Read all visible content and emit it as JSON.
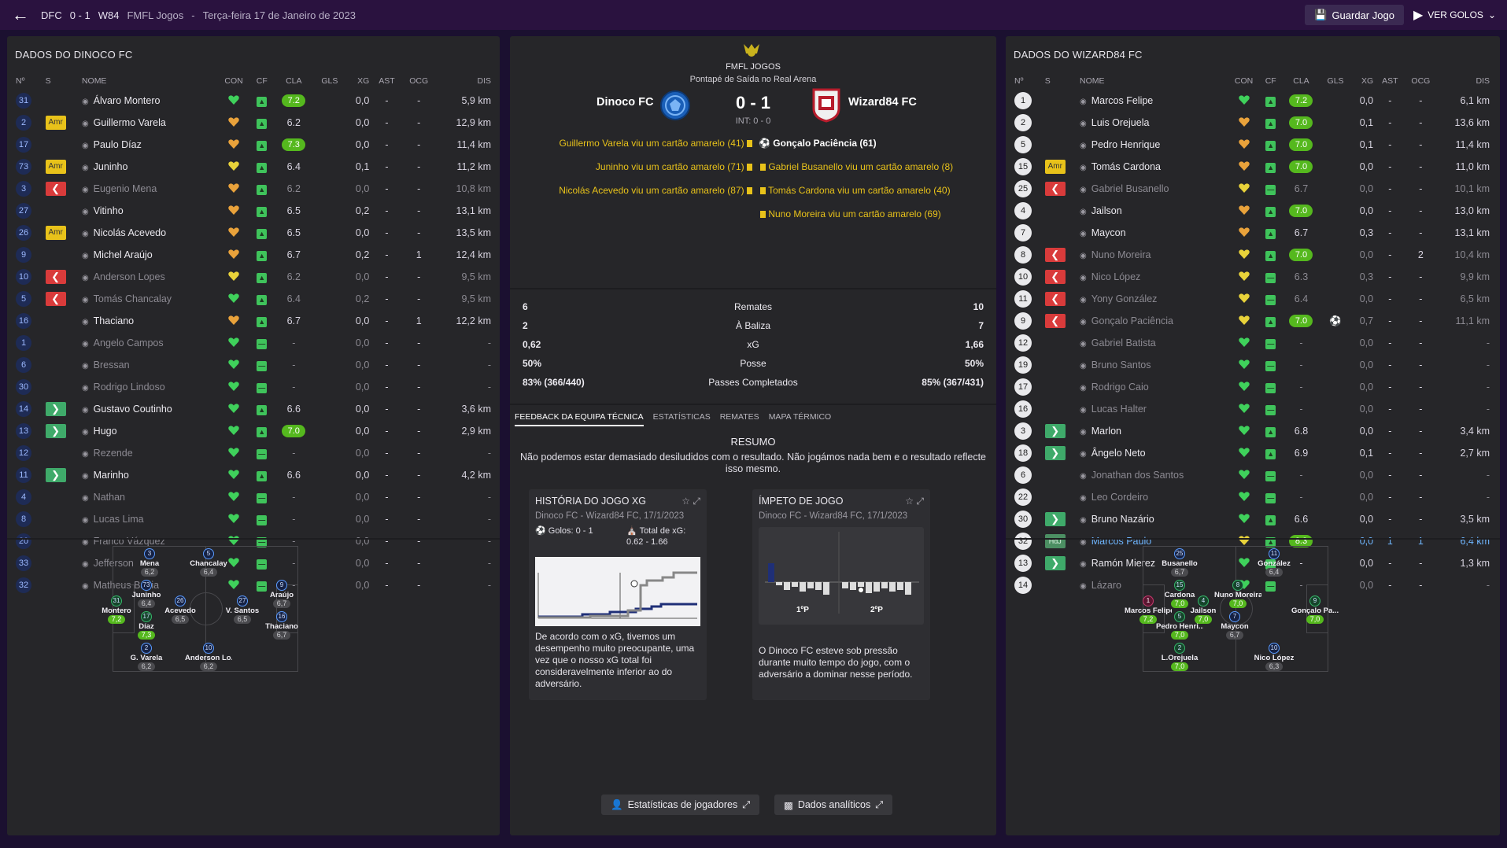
{
  "topbar": {
    "abbr": "DFC",
    "score": "0 - 1",
    "opp": "W84",
    "comp": "FMFL Jogos",
    "date": "Terça-feira 17 de Janeiro de 2023",
    "save": "Guardar Jogo",
    "goals": "VER GOLOS"
  },
  "left": {
    "title": "DADOS DO DINOCO FC",
    "headers": [
      "Nº",
      "S",
      "NOME",
      "CON",
      "CF",
      "CLA",
      "GLS",
      "XG",
      "AST",
      "OCG",
      "DIS"
    ],
    "players": [
      {
        "n": "31",
        "s": "",
        "name": "Álvaro Montero",
        "heart": "green",
        "cla": "7.2",
        "hi": true,
        "gls": "0,0",
        "xg": "-",
        "ast": "-",
        "dis": "5,9 km"
      },
      {
        "n": "2",
        "s": "Amr",
        "name": "Guillermo Varela",
        "heart": "orange",
        "cla": "6.2",
        "gls": "0,0",
        "xg": "-",
        "ast": "-",
        "dis": "12,9 km"
      },
      {
        "n": "17",
        "s": "",
        "name": "Paulo Díaz",
        "heart": "orange",
        "cla": "7.3",
        "hi": true,
        "gls": "0,0",
        "xg": "-",
        "ast": "-",
        "dis": "11,4 km"
      },
      {
        "n": "73",
        "s": "Amr",
        "name": "Juninho",
        "heart": "yellow",
        "cla": "6.4",
        "gls": "0,1",
        "xg": "-",
        "ast": "-",
        "dis": "11,2 km"
      },
      {
        "n": "3",
        "s": "out",
        "name": "Eugenio Mena",
        "heart": "orange",
        "cla": "6.2",
        "gls": "0,0",
        "xg": "-",
        "ast": "-",
        "dis": "10,8 km",
        "dim": true
      },
      {
        "n": "27",
        "s": "",
        "name": "Vitinho",
        "heart": "orange",
        "cla": "6.5",
        "gls": "0,2",
        "xg": "-",
        "ast": "-",
        "dis": "13,1 km"
      },
      {
        "n": "26",
        "s": "Amr",
        "name": "Nicolás Acevedo",
        "heart": "orange",
        "cla": "6.5",
        "gls": "0,0",
        "xg": "-",
        "ast": "-",
        "dis": "13,5 km"
      },
      {
        "n": "9",
        "s": "",
        "name": "Michel Araújo",
        "heart": "orange",
        "cla": "6.7",
        "gls": "0,2",
        "xg": "-",
        "ast": "1",
        "dis": "12,4 km"
      },
      {
        "n": "10",
        "s": "out",
        "name": "Anderson Lopes",
        "heart": "yellow",
        "cla": "6.2",
        "gls": "0,0",
        "xg": "-",
        "ast": "-",
        "dis": "9,5 km",
        "dim": true
      },
      {
        "n": "5",
        "s": "out",
        "name": "Tomás Chancalay",
        "heart": "green",
        "cla": "6.4",
        "gls": "0,2",
        "xg": "-",
        "ast": "-",
        "dis": "9,5 km",
        "dim": true
      },
      {
        "n": "16",
        "s": "",
        "name": "Thaciano",
        "heart": "orange",
        "cla": "6.7",
        "gls": "0,0",
        "xg": "-",
        "ast": "1",
        "dis": "12,2 km"
      },
      {
        "n": "1",
        "s": "",
        "name": "Angelo Campos",
        "heart": "green",
        "cla": "-",
        "gls": "0,0",
        "xg": "-",
        "ast": "-",
        "dis": "-",
        "dim": true
      },
      {
        "n": "6",
        "s": "",
        "name": "Bressan",
        "heart": "green",
        "cla": "-",
        "gls": "0,0",
        "xg": "-",
        "ast": "-",
        "dis": "-",
        "dim": true
      },
      {
        "n": "30",
        "s": "",
        "name": "Rodrigo Lindoso",
        "heart": "green",
        "cla": "-",
        "gls": "0,0",
        "xg": "-",
        "ast": "-",
        "dis": "-",
        "dim": true
      },
      {
        "n": "14",
        "s": "in",
        "name": "Gustavo Coutinho",
        "heart": "green",
        "cla": "6.6",
        "gls": "0,0",
        "xg": "-",
        "ast": "-",
        "dis": "3,6 km"
      },
      {
        "n": "13",
        "s": "in",
        "name": "Hugo",
        "heart": "green",
        "cla": "7.0",
        "hi": true,
        "gls": "0,0",
        "xg": "-",
        "ast": "-",
        "dis": "2,9 km"
      },
      {
        "n": "12",
        "s": "",
        "name": "Rezende",
        "heart": "green",
        "cla": "-",
        "gls": "0,0",
        "xg": "-",
        "ast": "-",
        "dis": "-",
        "dim": true
      },
      {
        "n": "11",
        "s": "in",
        "name": "Marinho",
        "heart": "green",
        "cla": "6.6",
        "gls": "0,0",
        "xg": "-",
        "ast": "-",
        "dis": "4,2 km"
      },
      {
        "n": "4",
        "s": "",
        "name": "Nathan",
        "heart": "green",
        "cla": "-",
        "gls": "0,0",
        "xg": "-",
        "ast": "-",
        "dis": "-",
        "dim": true
      },
      {
        "n": "8",
        "s": "",
        "name": "Lucas Lima",
        "heart": "green",
        "cla": "-",
        "gls": "0,0",
        "xg": "-",
        "ast": "-",
        "dis": "-",
        "dim": true
      },
      {
        "n": "20",
        "s": "",
        "name": "Franco Vázquez",
        "heart": "green",
        "cla": "-",
        "gls": "0,0",
        "xg": "-",
        "ast": "-",
        "dis": "-",
        "dim": true
      },
      {
        "n": "33",
        "s": "",
        "name": "Jefferson",
        "heart": "green",
        "cla": "-",
        "gls": "0,0",
        "xg": "-",
        "ast": "-",
        "dis": "-",
        "dim": true
      },
      {
        "n": "32",
        "s": "",
        "name": "Matheus Bahia",
        "heart": "green",
        "cla": "-",
        "gls": "0,0",
        "xg": "-",
        "ast": "-",
        "dis": "-",
        "dim": true
      }
    ],
    "pitch": [
      {
        "n": "3",
        "name": "Mena",
        "r": "6,2"
      },
      {
        "n": "5",
        "name": "Chancalay",
        "r": "6,4"
      },
      {
        "n": "73",
        "name": "Juninho",
        "r": "6,4"
      },
      {
        "n": "9",
        "name": "Araújo",
        "r": "6,7"
      },
      {
        "n": "31",
        "name": "Montero",
        "r": "7,2",
        "g": true
      },
      {
        "n": "26",
        "name": "Acevedo",
        "r": "6,5"
      },
      {
        "n": "27",
        "name": "V. Santos",
        "r": "6,5"
      },
      {
        "n": "17",
        "name": "Díaz",
        "r": "7,3",
        "g": true
      },
      {
        "n": "16",
        "name": "Thaciano",
        "r": "6,7"
      },
      {
        "n": "2",
        "name": "G. Varela",
        "r": "6,2"
      },
      {
        "n": "10",
        "name": "Anderson Lo...",
        "r": "6,2"
      }
    ]
  },
  "center": {
    "comp": "FMFL JOGOS",
    "venue": "Pontapé de Saída no Real Arena",
    "home": "Dinoco FC",
    "away": "Wizard84 FC",
    "score": "0 - 1",
    "int": "INT: 0 - 0",
    "home_events": [
      "Guillermo Varela viu um cartão amarelo (41)",
      "Juninho viu um cartão amarelo (71)",
      "Nicolás Acevedo viu um cartão amarelo (87)"
    ],
    "goal_event": "Gonçalo Paciência (61)",
    "away_events": [
      "Gabriel Busanello viu um cartão amarelo (8)",
      "Tomás Cardona viu um cartão amarelo (40)",
      "Nuno Moreira viu um cartão amarelo (69)"
    ],
    "stats": [
      {
        "a": "6",
        "m": "Remates",
        "b": "10"
      },
      {
        "a": "2",
        "m": "À Baliza",
        "b": "7"
      },
      {
        "a": "0,62",
        "m": "xG",
        "b": "1,66"
      },
      {
        "a": "50%",
        "m": "Posse",
        "b": "50%"
      },
      {
        "a": "83% (366/440)",
        "m": "Passes Completados",
        "b": "85% (367/431)"
      }
    ],
    "tabs": [
      "FEEDBACK DA EQUIPA TÉCNICA",
      "ESTATÍSTICAS",
      "REMATES",
      "MAPA TÉRMICO"
    ],
    "resumo_title": "RESUMO",
    "resumo": "Não podemos estar demasiado desiludidos com o resultado. Não jogámos nada bem e o resultado reflecte isso mesmo.",
    "card1": {
      "title": "HISTÓRIA DO JOGO XG",
      "sub": "Dinoco FC - Wizard84 FC, 17/1/2023",
      "goals": "Golos: 0 - 1",
      "xg": "Total de xG: 0.62 - 1.66",
      "foot": "De acordo com o xG, tivemos um desempenho muito preocupante, uma vez que o nosso xG total foi consideravelmente inferior ao do adversário."
    },
    "card2": {
      "title": "ÍMPETO DE JOGO",
      "sub": "Dinoco FC - Wizard84 FC, 17/1/2023",
      "h1": "1ºP",
      "h2": "2ºP",
      "foot": "O Dinoco FC esteve sob pressão durante muito tempo do jogo, com o adversário a dominar nesse período."
    },
    "btn1": "Estatísticas de jogadores",
    "btn2": "Dados analíticos"
  },
  "right": {
    "title": "DADOS DO WIZARD84 FC",
    "players": [
      {
        "n": "1",
        "s": "",
        "name": "Marcos Felipe",
        "heart": "green",
        "cla": "7.2",
        "hi": true,
        "gls": "",
        "xg": "0,0",
        "ast": "-",
        "ocg": "-",
        "dis": "6,1 km"
      },
      {
        "n": "2",
        "s": "",
        "name": "Luis Orejuela",
        "heart": "orange",
        "cla": "7.0",
        "hi": true,
        "gls": "",
        "xg": "0,1",
        "ast": "-",
        "ocg": "-",
        "dis": "13,6 km"
      },
      {
        "n": "5",
        "s": "",
        "name": "Pedro Henrique",
        "heart": "orange",
        "cla": "7.0",
        "hi": true,
        "gls": "",
        "xg": "0,1",
        "ast": "-",
        "ocg": "-",
        "dis": "11,4 km"
      },
      {
        "n": "15",
        "s": "Amr",
        "name": "Tomás Cardona",
        "heart": "orange",
        "cla": "7.0",
        "hi": true,
        "gls": "",
        "xg": "0,0",
        "ast": "-",
        "ocg": "-",
        "dis": "11,0 km"
      },
      {
        "n": "25",
        "s": "out",
        "name": "Gabriel Busanello",
        "heart": "yellow",
        "cla": "6.7",
        "gls": "",
        "xg": "0,0",
        "ast": "-",
        "ocg": "-",
        "dis": "10,1 km",
        "dim": true
      },
      {
        "n": "4",
        "s": "",
        "name": "Jailson",
        "heart": "orange",
        "cla": "7.0",
        "hi": true,
        "gls": "",
        "xg": "0,0",
        "ast": "-",
        "ocg": "-",
        "dis": "13,0 km"
      },
      {
        "n": "7",
        "s": "",
        "name": "Maycon",
        "heart": "orange",
        "cla": "6.7",
        "gls": "",
        "xg": "0,3",
        "ast": "-",
        "ocg": "-",
        "dis": "13,1 km"
      },
      {
        "n": "8",
        "s": "out",
        "name": "Nuno Moreira",
        "heart": "yellow",
        "cla": "7.0",
        "hi": true,
        "gls": "",
        "xg": "0,0",
        "ast": "-",
        "ocg": "2",
        "dis": "10,4 km",
        "dim": true
      },
      {
        "n": "10",
        "s": "out",
        "name": "Nico López",
        "heart": "yellow",
        "cla": "6.3",
        "gls": "",
        "xg": "0,3",
        "ast": "-",
        "ocg": "-",
        "dis": "9,9 km",
        "dim": true
      },
      {
        "n": "11",
        "s": "out",
        "name": "Yony González",
        "heart": "yellow",
        "cla": "6.4",
        "gls": "",
        "xg": "0,0",
        "ast": "-",
        "ocg": "-",
        "dis": "6,5 km",
        "dim": true
      },
      {
        "n": "9",
        "s": "out",
        "name": "Gonçalo Paciência",
        "heart": "yellow",
        "cla": "7.0",
        "hi": true,
        "gls": "⚽",
        "xg": "0,7",
        "ast": "-",
        "ocg": "-",
        "dis": "11,1 km",
        "dim": true
      },
      {
        "n": "12",
        "s": "",
        "name": "Gabriel Batista",
        "heart": "green",
        "cla": "-",
        "gls": "",
        "xg": "0,0",
        "ast": "-",
        "ocg": "-",
        "dis": "-",
        "dim": true
      },
      {
        "n": "19",
        "s": "",
        "name": "Bruno Santos",
        "heart": "green",
        "cla": "-",
        "gls": "",
        "xg": "0,0",
        "ast": "-",
        "ocg": "-",
        "dis": "-",
        "dim": true
      },
      {
        "n": "17",
        "s": "",
        "name": "Rodrigo Caio",
        "heart": "green",
        "cla": "-",
        "gls": "",
        "xg": "0,0",
        "ast": "-",
        "ocg": "-",
        "dis": "-",
        "dim": true
      },
      {
        "n": "16",
        "s": "",
        "name": "Lucas Halter",
        "heart": "green",
        "cla": "-",
        "gls": "",
        "xg": "0,0",
        "ast": "-",
        "ocg": "-",
        "dis": "-",
        "dim": true
      },
      {
        "n": "3",
        "s": "in",
        "name": "Marlon",
        "heart": "green",
        "cla": "6.8",
        "gls": "",
        "xg": "0,0",
        "ast": "-",
        "ocg": "-",
        "dis": "3,4 km"
      },
      {
        "n": "18",
        "s": "in",
        "name": "Ângelo Neto",
        "heart": "green",
        "cla": "6.9",
        "gls": "",
        "xg": "0,1",
        "ast": "-",
        "ocg": "-",
        "dis": "2,7 km"
      },
      {
        "n": "6",
        "s": "",
        "name": "Jonathan dos Santos",
        "heart": "green",
        "cla": "-",
        "gls": "",
        "xg": "0,0",
        "ast": "-",
        "ocg": "-",
        "dis": "-",
        "dim": true
      },
      {
        "n": "22",
        "s": "",
        "name": "Leo Cordeiro",
        "heart": "green",
        "cla": "-",
        "gls": "",
        "xg": "0,0",
        "ast": "-",
        "ocg": "-",
        "dis": "-",
        "dim": true
      },
      {
        "n": "30",
        "s": "in",
        "name": "Bruno Nazário",
        "heart": "green",
        "cla": "6.6",
        "gls": "",
        "xg": "0,0",
        "ast": "-",
        "ocg": "-",
        "dis": "3,5 km"
      },
      {
        "n": "32",
        "s": "HdJ",
        "name": "Marcos Paulo",
        "heart": "yellow",
        "cla": "8.3",
        "hi": true,
        "gls": "",
        "xg": "0,0",
        "ast": "1",
        "ocg": "1",
        "dis": "6,4 km",
        "blue": true
      },
      {
        "n": "13",
        "s": "in",
        "name": "Ramón Mierez",
        "heart": "green",
        "cla": "-",
        "gls": "",
        "xg": "0,0",
        "ast": "-",
        "ocg": "-",
        "dis": "1,3 km"
      },
      {
        "n": "14",
        "s": "",
        "name": "Lázaro",
        "heart": "green",
        "cla": "-",
        "gls": "",
        "xg": "0,0",
        "ast": "-",
        "ocg": "-",
        "dis": "-",
        "dim": true
      }
    ],
    "pitch": [
      {
        "n": "25",
        "name": "Busanello",
        "r": "6,7"
      },
      {
        "n": "11",
        "name": "González",
        "r": "6,4"
      },
      {
        "n": "15",
        "name": "Cardona",
        "r": "7,0",
        "g": true
      },
      {
        "n": "8",
        "name": "Nuno Moreira",
        "r": "7,0",
        "g": true
      },
      {
        "n": "1",
        "name": "Marcos Felipe",
        "r": "7,2",
        "g": true,
        "m": true
      },
      {
        "n": "4",
        "name": "Jailson",
        "r": "7,0",
        "g": true
      },
      {
        "n": "9",
        "name": "Gonçalo Pa...",
        "r": "7,0",
        "g": true
      },
      {
        "n": "5",
        "name": "Pedro Henri...",
        "r": "7,0",
        "g": true
      },
      {
        "n": "7",
        "name": "Maycon",
        "r": "6,7"
      },
      {
        "n": "2",
        "name": "L.Orejuela",
        "r": "7,0",
        "g": true
      },
      {
        "n": "10",
        "name": "Nico López",
        "r": "6,3"
      }
    ]
  }
}
